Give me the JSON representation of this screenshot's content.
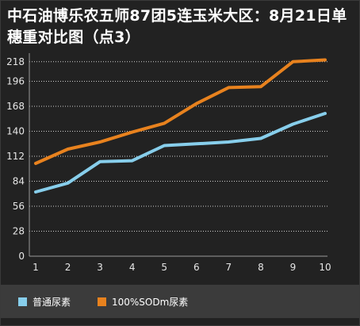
{
  "title": "中石油博乐农五师87团5连玉米大区：8月21日单穗重对比图（点3）",
  "colors": {
    "background": "#222222",
    "grid": "#cfcfcf",
    "axis_text": "#e6e6e6",
    "series_1": "#87CEEB",
    "series_2": "#E8821E",
    "legend_bg": "#3b3b3b"
  },
  "chart_data": {
    "type": "line",
    "title": "中石油博乐农五师87团5连玉米大区：8月21日单穗重对比图（点3）",
    "xlabel": "",
    "ylabel": "",
    "x": [
      1,
      2,
      3,
      4,
      5,
      6,
      7,
      8,
      9,
      10
    ],
    "ylim": [
      0,
      224
    ],
    "yticks": [
      0,
      28,
      56,
      84,
      112,
      140,
      168,
      196,
      218
    ],
    "grid": "horizontal dotted",
    "legend_position": "bottom-left",
    "series": [
      {
        "name": "普通尿素",
        "color": "#87CEEB",
        "values": [
          72,
          82,
          106,
          107,
          124,
          126,
          128,
          132,
          148,
          160
        ]
      },
      {
        "name": "100%SODm尿素",
        "color": "#E8821E",
        "values": [
          104,
          120,
          128,
          139,
          149,
          171,
          189,
          190,
          218,
          220
        ]
      }
    ]
  }
}
